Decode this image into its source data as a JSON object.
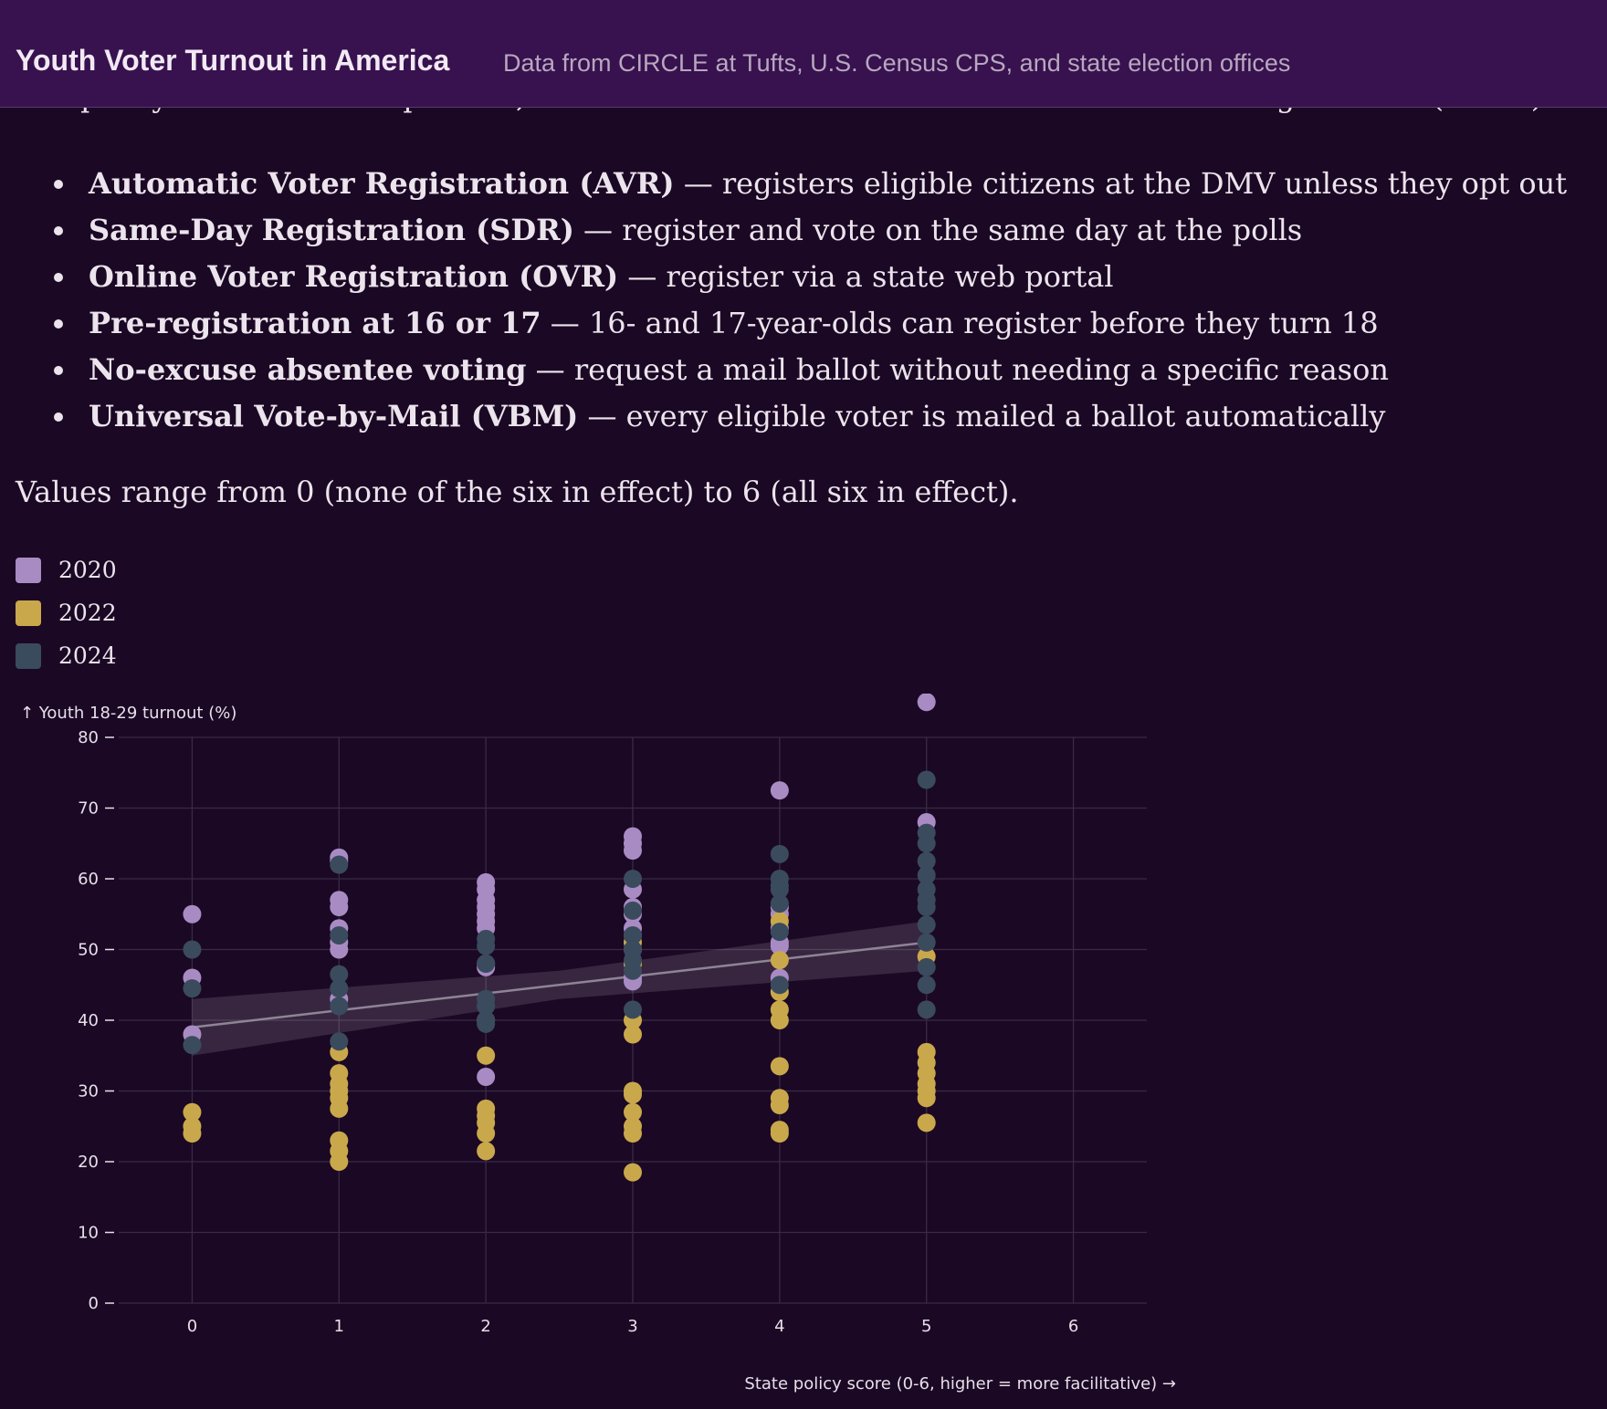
{
  "header": {
    "title": "Youth Voter Turnout in America",
    "subtitle": "Data from CIRCLE at Tufts, U.S. Census CPS, and state election offices"
  },
  "intro_text": "The policy score sums six policies, sourced from the National Conference of State Legislatures (NCSL):",
  "policies": [
    {
      "name": "Automatic Voter Registration (AVR)",
      "desc": " — registers eligible citizens at the DMV unless they opt out"
    },
    {
      "name": "Same-Day Registration (SDR)",
      "desc": " — register and vote on the same day at the polls"
    },
    {
      "name": "Online Voter Registration (OVR)",
      "desc": " — register via a state web portal"
    },
    {
      "name": "Pre-registration at 16 or 17",
      "desc": " — 16- and 17-year-olds can register before they turn 18"
    },
    {
      "name": "No-excuse absentee voting",
      "desc": " — request a mail ballot without needing a specific reason"
    },
    {
      "name": "Universal Vote-by-Mail (VBM)",
      "desc": " — every eligible voter is mailed a ballot automatically"
    }
  ],
  "range_note": "Values range from 0 (none of the six in effect) to 6 (all six in effect).",
  "legend": [
    {
      "label": "2020",
      "color": "#a98bc4"
    },
    {
      "label": "2022",
      "color": "#c9a84c"
    },
    {
      "label": "2024",
      "color": "#3a4b5e"
    }
  ],
  "chart_data": {
    "type": "scatter",
    "ylabel": "↑ Youth 18-29 turnout (%)",
    "xlabel": "State policy score (0-6, higher = more facilitative) →",
    "xlim": [
      -0.5,
      6.5
    ],
    "ylim": [
      0,
      80
    ],
    "x_ticks": [
      "0",
      "1",
      "2",
      "3",
      "4",
      "5",
      "6"
    ],
    "y_ticks": [
      "0",
      "10",
      "20",
      "30",
      "40",
      "50",
      "60",
      "70",
      "80"
    ],
    "grid": true,
    "trendline": {
      "from": [
        0,
        39
      ],
      "to": [
        5,
        51
      ],
      "band": [
        [
          0,
          35,
          43
        ],
        [
          2.5,
          43,
          47
        ],
        [
          5,
          47,
          54
        ]
      ]
    },
    "series": [
      {
        "name": "2020",
        "color": "#a98bc4",
        "points": [
          [
            0,
            55
          ],
          [
            0,
            46
          ],
          [
            0,
            38
          ],
          [
            1,
            63
          ],
          [
            1,
            62.5
          ],
          [
            1,
            57
          ],
          [
            1,
            56
          ],
          [
            1,
            53
          ],
          [
            1,
            51
          ],
          [
            1,
            50
          ],
          [
            1,
            43
          ],
          [
            2,
            59.5
          ],
          [
            2,
            58.5
          ],
          [
            2,
            57
          ],
          [
            2,
            56
          ],
          [
            2,
            55
          ],
          [
            2,
            54
          ],
          [
            2,
            53
          ],
          [
            2,
            48
          ],
          [
            2,
            47.5
          ],
          [
            2,
            32
          ],
          [
            3,
            66
          ],
          [
            3,
            65
          ],
          [
            3,
            64
          ],
          [
            3,
            58.5
          ],
          [
            3,
            56
          ],
          [
            3,
            55
          ],
          [
            3,
            53
          ],
          [
            3,
            52
          ],
          [
            3,
            50
          ],
          [
            3,
            46
          ],
          [
            3,
            45.5
          ],
          [
            4,
            72.5
          ],
          [
            4,
            56
          ],
          [
            4,
            55
          ],
          [
            4,
            53
          ],
          [
            4,
            51
          ],
          [
            4,
            50.5
          ],
          [
            4,
            46
          ],
          [
            5,
            85
          ],
          [
            5,
            68
          ]
        ]
      },
      {
        "name": "2022",
        "color": "#c9a84c",
        "points": [
          [
            0,
            27
          ],
          [
            0,
            25
          ],
          [
            0,
            24
          ],
          [
            1,
            35.5
          ],
          [
            1,
            32.5
          ],
          [
            1,
            31
          ],
          [
            1,
            30
          ],
          [
            1,
            29
          ],
          [
            1,
            27.5
          ],
          [
            1,
            23
          ],
          [
            1,
            21.5
          ],
          [
            1,
            20
          ],
          [
            2,
            40
          ],
          [
            2,
            35
          ],
          [
            2,
            27.5
          ],
          [
            2,
            26.5
          ],
          [
            2,
            25.5
          ],
          [
            2,
            24
          ],
          [
            2,
            21.5
          ],
          [
            3,
            51
          ],
          [
            3,
            48
          ],
          [
            3,
            40
          ],
          [
            3,
            38
          ],
          [
            3,
            30
          ],
          [
            3,
            29.5
          ],
          [
            3,
            27
          ],
          [
            3,
            25
          ],
          [
            3,
            24
          ],
          [
            3,
            18.5
          ],
          [
            4,
            54
          ],
          [
            4,
            48.5
          ],
          [
            4,
            44
          ],
          [
            4,
            41.5
          ],
          [
            4,
            40
          ],
          [
            4,
            33.5
          ],
          [
            4,
            29
          ],
          [
            4,
            28
          ],
          [
            4,
            24.5
          ],
          [
            4,
            24
          ],
          [
            5,
            49
          ],
          [
            5,
            35.5
          ],
          [
            5,
            34
          ],
          [
            5,
            32.5
          ],
          [
            5,
            31
          ],
          [
            5,
            30
          ],
          [
            5,
            29
          ],
          [
            5,
            25.5
          ]
        ]
      },
      {
        "name": "2024",
        "color": "#3a4b5e",
        "points": [
          [
            0,
            50
          ],
          [
            0,
            44.5
          ],
          [
            0,
            36.5
          ],
          [
            1,
            62
          ],
          [
            1,
            52
          ],
          [
            1,
            46.5
          ],
          [
            1,
            44.5
          ],
          [
            1,
            42
          ],
          [
            1,
            37
          ],
          [
            2,
            51.5
          ],
          [
            2,
            50.5
          ],
          [
            2,
            48
          ],
          [
            2,
            43
          ],
          [
            2,
            42
          ],
          [
            2,
            40
          ],
          [
            2,
            39.5
          ],
          [
            3,
            60
          ],
          [
            3,
            55.5
          ],
          [
            3,
            52
          ],
          [
            3,
            50
          ],
          [
            3,
            48.5
          ],
          [
            3,
            47
          ],
          [
            3,
            41.5
          ],
          [
            4,
            63.5
          ],
          [
            4,
            60
          ],
          [
            4,
            59
          ],
          [
            4,
            58.5
          ],
          [
            4,
            56.5
          ],
          [
            4,
            52.5
          ],
          [
            4,
            45
          ],
          [
            5,
            74
          ],
          [
            5,
            66.5
          ],
          [
            5,
            65
          ],
          [
            5,
            62.5
          ],
          [
            5,
            60.5
          ],
          [
            5,
            58.5
          ],
          [
            5,
            57
          ],
          [
            5,
            56
          ],
          [
            5,
            53.5
          ],
          [
            5,
            51
          ],
          [
            5,
            47.5
          ],
          [
            5,
            45
          ],
          [
            5,
            41.5
          ]
        ]
      }
    ]
  }
}
